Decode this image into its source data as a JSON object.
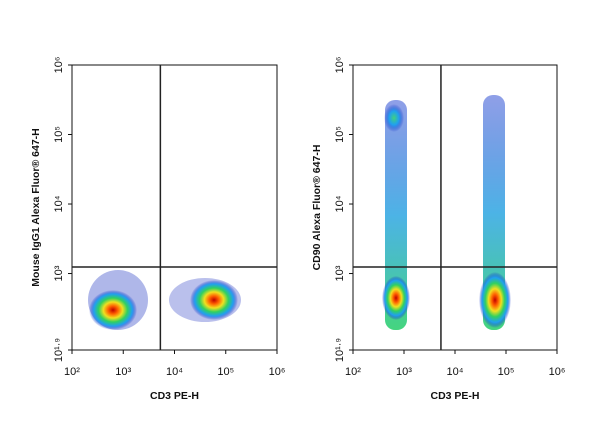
{
  "chart_data": [
    {
      "type": "scatter",
      "x_label": "CD3 PE-H",
      "y_label": "Mouse IgG1 Alexa Fluor® 647-H",
      "log_scale": true,
      "xlim": [
        100,
        1000000
      ],
      "ylim": [
        79.4,
        1000000
      ],
      "xticks": [
        {
          "value": 100,
          "label": "10²"
        },
        {
          "value": 1000,
          "label": "10³"
        },
        {
          "value": 10000,
          "label": "10⁴"
        },
        {
          "value": 100000,
          "label": "10⁵"
        },
        {
          "value": 1000000,
          "label": "10⁶"
        }
      ],
      "yticks": [
        {
          "value": 79.4,
          "label": "10¹·⁹"
        },
        {
          "value": 1000,
          "label": "10³"
        },
        {
          "value": 10000,
          "label": "10⁴"
        },
        {
          "value": 100000,
          "label": "10⁵"
        },
        {
          "value": 1000000,
          "label": "10⁶"
        }
      ],
      "quadrant_gate": {
        "x": 5300,
        "y": 1240
      }
    },
    {
      "type": "scatter",
      "x_label": "CD3 PE-H",
      "y_label": "CD90 Alexa Fluor® 647-H",
      "log_scale": true,
      "xlim": [
        100,
        1000000
      ],
      "ylim": [
        79.4,
        1000000
      ],
      "xticks": [
        {
          "value": 100,
          "label": "10²"
        },
        {
          "value": 1000,
          "label": "10³"
        },
        {
          "value": 10000,
          "label": "10⁴"
        },
        {
          "value": 100000,
          "label": "10⁵"
        },
        {
          "value": 1000000,
          "label": "10⁶"
        }
      ],
      "yticks": [
        {
          "value": 79.4,
          "label": "10¹·⁹"
        },
        {
          "value": 1000,
          "label": "10³"
        },
        {
          "value": 10000,
          "label": "10⁴"
        },
        {
          "value": 100000,
          "label": "10⁵"
        },
        {
          "value": 1000000,
          "label": "10⁶"
        }
      ],
      "quadrant_gate": {
        "x": 5300,
        "y": 1240
      }
    }
  ]
}
